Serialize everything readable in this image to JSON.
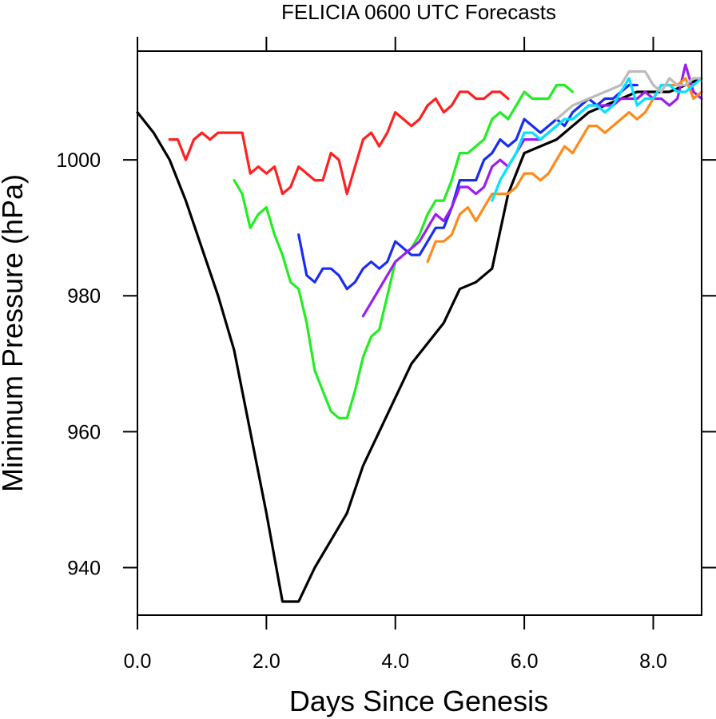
{
  "chart_data": {
    "type": "line",
    "title": "FELICIA 0600 UTC Forecasts",
    "xlabel": "Days Since Genesis",
    "ylabel": "Minimum Pressure (hPa)",
    "xlim": [
      0,
      8.75
    ],
    "ylim": [
      933,
      1016
    ],
    "xticks": [
      0,
      2,
      4,
      6,
      8
    ],
    "xtick_labels": [
      "0.0",
      "2.0",
      "4.0",
      "6.0",
      "8.0"
    ],
    "yticks": [
      940,
      960,
      980,
      1000
    ],
    "ytick_labels": [
      "940",
      "960",
      "980",
      "1000"
    ],
    "grid": false,
    "series": [
      {
        "color": "#000000",
        "x": [
          0,
          0.25,
          0.5,
          0.75,
          1.0,
          1.25,
          1.5,
          1.75,
          2.0,
          2.25,
          2.5,
          2.75,
          3.0,
          3.25,
          3.5,
          3.75,
          4.0,
          4.25,
          4.5,
          4.75,
          5.0,
          5.25,
          5.5,
          5.75,
          6.0,
          6.25,
          6.5,
          6.75,
          7.0,
          7.25,
          7.5,
          7.75,
          8.0,
          8.25,
          8.5,
          8.75
        ],
        "y": [
          1007,
          1004,
          1000,
          994,
          987,
          980,
          972,
          960,
          948,
          935,
          935,
          940,
          944,
          948,
          955,
          960,
          965,
          970,
          973,
          976,
          981,
          982,
          984,
          995,
          1001,
          1002,
          1003,
          1005,
          1007,
          1008,
          1009,
          1010,
          1010,
          1010,
          1011,
          1012
        ]
      },
      {
        "color": "#ff2020",
        "x": [
          0.5,
          0.625,
          0.75,
          0.875,
          1.0,
          1.125,
          1.25,
          1.375,
          1.5,
          1.625,
          1.75,
          1.875,
          2.0,
          2.125,
          2.25,
          2.375,
          2.5,
          2.625,
          2.75,
          2.875,
          3.0,
          3.125,
          3.25,
          3.375,
          3.5,
          3.625,
          3.75,
          3.875,
          4.0,
          4.125,
          4.25,
          4.375,
          4.5,
          4.625,
          4.75,
          4.875,
          5.0,
          5.125,
          5.25,
          5.375,
          5.5,
          5.625,
          5.75
        ],
        "y": [
          1003,
          1003,
          1000,
          1003,
          1004,
          1003,
          1004,
          1004,
          1004,
          1004,
          998,
          999,
          998,
          999,
          995,
          996,
          999,
          998,
          997,
          997,
          1001,
          1000,
          995,
          999,
          1003,
          1004,
          1002,
          1004,
          1007,
          1006,
          1005,
          1006,
          1008,
          1009,
          1007,
          1008,
          1010,
          1010,
          1009,
          1009,
          1010,
          1010,
          1009
        ]
      },
      {
        "color": "#22ee22",
        "x": [
          1.5,
          1.625,
          1.75,
          1.875,
          2.0,
          2.125,
          2.25,
          2.375,
          2.5,
          2.625,
          2.75,
          2.875,
          3.0,
          3.125,
          3.25,
          3.375,
          3.5,
          3.625,
          3.75,
          3.875,
          4.0,
          4.125,
          4.25,
          4.375,
          4.5,
          4.625,
          4.75,
          4.875,
          5.0,
          5.125,
          5.25,
          5.375,
          5.5,
          5.625,
          5.75,
          5.875,
          6.0,
          6.125,
          6.25,
          6.375,
          6.5,
          6.625,
          6.75
        ],
        "y": [
          997,
          995,
          990,
          992,
          993,
          989,
          986,
          982,
          981,
          976,
          969,
          966,
          963,
          962,
          962,
          966,
          971,
          974,
          975,
          980,
          985,
          986,
          987,
          989,
          992,
          994,
          994,
          997,
          1001,
          1001,
          1002,
          1003,
          1006,
          1007,
          1006,
          1008,
          1010,
          1009,
          1009,
          1009,
          1011,
          1011,
          1010
        ]
      },
      {
        "color": "#1a2cf0",
        "x": [
          2.5,
          2.625,
          2.75,
          2.875,
          3.0,
          3.125,
          3.25,
          3.375,
          3.5,
          3.625,
          3.75,
          3.875,
          4.0,
          4.125,
          4.25,
          4.375,
          4.5,
          4.625,
          4.75,
          4.875,
          5.0,
          5.125,
          5.25,
          5.375,
          5.5,
          5.625,
          5.75,
          5.875,
          6.0,
          6.125,
          6.25,
          6.375,
          6.5,
          6.625,
          6.75,
          6.875,
          7.0,
          7.125,
          7.25,
          7.375,
          7.5,
          7.625,
          7.75
        ],
        "y": [
          989,
          983,
          982,
          984,
          984,
          983,
          981,
          982,
          984,
          985,
          984,
          985,
          988,
          987,
          986,
          986,
          988,
          990,
          990,
          993,
          997,
          997,
          997,
          1000,
          1001,
          1003,
          1002,
          1003,
          1006,
          1005,
          1004,
          1005,
          1006,
          1005,
          1007,
          1008,
          1009,
          1008,
          1009,
          1009,
          1010,
          1011,
          1011
        ]
      },
      {
        "color": "#9a1fef",
        "x": [
          3.5,
          3.75,
          4.0,
          4.25,
          4.375,
          4.5,
          4.625,
          4.75,
          4.875,
          5.0,
          5.125,
          5.25,
          5.375,
          5.5,
          5.625,
          5.75,
          5.875,
          6.0,
          6.125,
          6.25,
          6.375,
          6.5,
          6.625,
          6.75,
          6.875,
          7.0,
          7.125,
          7.25,
          7.375,
          7.5,
          7.625,
          7.75,
          7.875,
          8.0,
          8.125,
          8.25,
          8.375,
          8.5,
          8.625,
          8.75
        ],
        "y": [
          977,
          981,
          985,
          987,
          988,
          990,
          992,
          991,
          993,
          996,
          996,
          995,
          996,
          999,
          1000,
          999,
          1001,
          1003,
          1003,
          1003,
          1004,
          1005,
          1006,
          1006,
          1007,
          1008,
          1008,
          1008,
          1008,
          1009,
          1009,
          1009,
          1010,
          1009,
          1009,
          1008,
          1009,
          1014,
          1010,
          1009
        ]
      },
      {
        "color": "#ff8a1a",
        "x": [
          4.5,
          4.625,
          4.75,
          4.875,
          5.0,
          5.125,
          5.25,
          5.375,
          5.5,
          5.625,
          5.75,
          5.875,
          6.0,
          6.125,
          6.25,
          6.375,
          6.5,
          6.625,
          6.75,
          6.875,
          7.0,
          7.125,
          7.25,
          7.375,
          7.5,
          7.625,
          7.75,
          7.875,
          8.0,
          8.125,
          8.25,
          8.375,
          8.5,
          8.625,
          8.75
        ],
        "y": [
          985,
          988,
          988,
          989,
          992,
          993,
          991,
          993,
          995,
          995,
          995,
          996,
          998,
          998,
          997,
          998,
          1000,
          1002,
          1001,
          1003,
          1005,
          1005,
          1004,
          1005,
          1006,
          1007,
          1006,
          1007,
          1009,
          1011,
          1011,
          1011,
          1012,
          1009,
          1010
        ]
      },
      {
        "color": "#00e5ff",
        "x": [
          5.5,
          5.625,
          5.75,
          5.875,
          6.0,
          6.125,
          6.25,
          6.375,
          6.5,
          6.625,
          6.75,
          6.875,
          7.0,
          7.125,
          7.25,
          7.375,
          7.5,
          7.625,
          7.75,
          7.875,
          8.0,
          8.125,
          8.25,
          8.375,
          8.5,
          8.625,
          8.75
        ],
        "y": [
          994,
          997,
          999,
          1001,
          1004,
          1004,
          1003,
          1004,
          1005,
          1006,
          1006,
          1007,
          1008,
          1008,
          1007,
          1008,
          1010,
          1012,
          1008,
          1009,
          1009,
          1011,
          1011,
          1010,
          1010,
          1011,
          1012
        ]
      },
      {
        "color": "#bbbbbb",
        "x": [
          6.5,
          6.75,
          7.0,
          7.25,
          7.5,
          7.625,
          7.75,
          7.875,
          8.0,
          8.125,
          8.25,
          8.375,
          8.5,
          8.625,
          8.75
        ],
        "y": [
          1006,
          1008,
          1009,
          1010,
          1011,
          1013,
          1013,
          1013,
          1011,
          1010,
          1012,
          1011,
          1011,
          1012,
          1012
        ]
      }
    ]
  }
}
